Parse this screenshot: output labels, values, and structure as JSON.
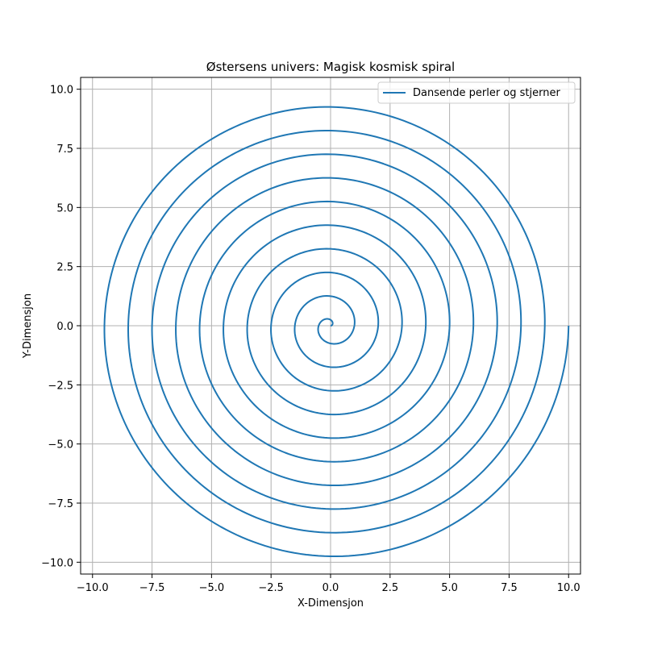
{
  "chart_data": {
    "type": "line",
    "title": "Østersens univers: Magisk kosmisk spiral",
    "xlabel": "X-Dimensjon",
    "ylabel": "Y-Dimensjon",
    "xlim": [
      -10.5,
      10.5
    ],
    "ylim": [
      -10.5,
      10.5
    ],
    "xticks": [
      -10.0,
      -7.5,
      -5.0,
      -2.5,
      0.0,
      2.5,
      5.0,
      7.5,
      10.0
    ],
    "yticks": [
      -10.0,
      -7.5,
      -5.0,
      -2.5,
      0.0,
      2.5,
      5.0,
      7.5,
      10.0
    ],
    "xtick_labels": [
      "−10.0",
      "−7.5",
      "−5.0",
      "−2.5",
      "0.0",
      "2.5",
      "5.0",
      "7.5",
      "10.0"
    ],
    "ytick_labels": [
      "−10.0",
      "−7.5",
      "−5.0",
      "−2.5",
      "0.0",
      "2.5",
      "5.0",
      "7.5",
      "10.0"
    ],
    "grid": true,
    "legend_position": "top-right",
    "series": [
      {
        "name": "Dansende perler og stjerner",
        "color": "#1f77b4",
        "curve": "archimedean spiral r = t / (2π), t from 0 to 20π",
        "t_range": [
          0,
          62.8319
        ],
        "r_range": [
          0,
          10
        ]
      }
    ]
  }
}
